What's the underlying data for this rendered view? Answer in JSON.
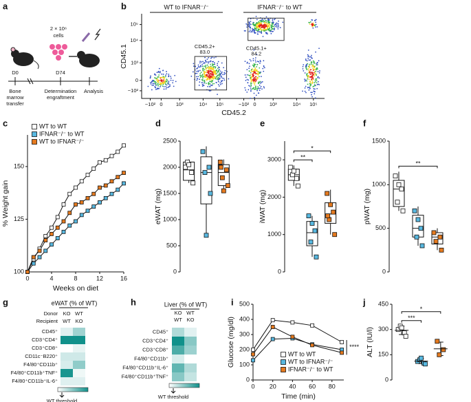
{
  "panel_labels": [
    "a",
    "b",
    "c",
    "d",
    "e",
    "f",
    "g",
    "h",
    "i",
    "j"
  ],
  "schematic": {
    "cell_dose": "2 × 10⁶",
    "cell_unit": "cells",
    "days": [
      "D0",
      "D74"
    ],
    "steps": [
      [
        "Bone",
        "marrow",
        "transfer"
      ],
      [
        "Determination",
        "engraftment"
      ],
      [
        "Analysis"
      ]
    ]
  },
  "flow": {
    "panels": [
      {
        "title": "WT to IFNAR⁻/⁻",
        "gate": [
          "CD45.2+",
          "83.0"
        ]
      },
      {
        "title": "IFNAR⁻/⁻ to WT",
        "gate": [
          "CD45.1+",
          "84.2"
        ]
      }
    ],
    "x_label": "CD45.2",
    "y_label": "CD45.1",
    "x_ticks": [
      "−10²",
      "0",
      "10³",
      "10⁴",
      "10⁵"
    ],
    "y_ticks": [
      "−10²",
      "0",
      "10³",
      "10⁴",
      "10⁵"
    ]
  },
  "chart_data": [
    {
      "type": "line",
      "y_label": "% Weight gain",
      "x_label": "Weeks on diet",
      "x": [
        0,
        1,
        2,
        3,
        4,
        5,
        6,
        7,
        8,
        9,
        10,
        11,
        12,
        13,
        14,
        15,
        16
      ],
      "xlim": [
        0,
        16
      ],
      "xticks": [
        0,
        4,
        8,
        12,
        16
      ],
      "ylim": [
        100,
        165
      ],
      "yticks": [
        100,
        125,
        150
      ],
      "legend": "upper left",
      "series": [
        {
          "name": "WT to WT",
          "color": "#ffffff",
          "values": [
            100,
            106,
            111,
            117,
            121,
            126,
            132,
            137,
            140,
            143,
            146,
            149,
            152,
            153,
            155,
            157,
            160
          ]
        },
        {
          "name": "IFNAR⁻/⁻ to WT",
          "color": "#58b8e0",
          "values": [
            100,
            104,
            107,
            110,
            113,
            116,
            119,
            122,
            124,
            127,
            129,
            131,
            133,
            135,
            137,
            139,
            142
          ]
        },
        {
          "name": "WT to IFNAR⁻/⁻",
          "color": "#e57a1f",
          "values": [
            100,
            107,
            110,
            115,
            118,
            121,
            124,
            128,
            132,
            133,
            135,
            137,
            140,
            141,
            143,
            145,
            147
          ]
        }
      ]
    },
    {
      "type": "box",
      "y_label": "eWAT (mg)",
      "ylim": [
        0,
        2500
      ],
      "yticks": [
        0,
        500,
        1000,
        1500,
        2000,
        2500
      ],
      "groups": [
        {
          "color": "#ffffff",
          "points": [
            2000,
            1900,
            2100,
            1700,
            2050
          ],
          "box": [
            1700,
            1750,
            1950,
            2100,
            2150
          ]
        },
        {
          "color": "#58b8e0",
          "points": [
            2300,
            2000,
            1900,
            1500,
            700
          ],
          "box": [
            700,
            1300,
            1900,
            2200,
            2400
          ]
        },
        {
          "color": "#e57a1f",
          "points": [
            2100,
            1950,
            1800,
            1650,
            1550,
            2000
          ],
          "box": [
            1550,
            1650,
            1900,
            2050,
            2150
          ]
        }
      ],
      "brackets": []
    },
    {
      "type": "box",
      "y_label": "iWAT (mg)",
      "ylim": [
        0,
        3500
      ],
      "yticks": [
        0,
        1000,
        2000,
        3000
      ],
      "groups": [
        {
          "color": "#ffffff",
          "points": [
            2800,
            2500,
            2600,
            2300,
            2700
          ],
          "box": [
            2300,
            2450,
            2600,
            2750,
            2850
          ]
        },
        {
          "color": "#58b8e0",
          "points": [
            1500,
            1100,
            800,
            400,
            1300
          ],
          "box": [
            400,
            700,
            1050,
            1350,
            1500
          ]
        },
        {
          "color": "#e57a1f",
          "points": [
            2100,
            1600,
            1400,
            1000,
            1800,
            1500
          ],
          "box": [
            1000,
            1300,
            1550,
            1850,
            2200
          ]
        }
      ],
      "brackets": [
        {
          "label": "**",
          "groups": [
            0,
            1
          ]
        },
        {
          "label": "*",
          "groups": [
            0,
            2
          ]
        }
      ]
    },
    {
      "type": "box",
      "y_label": "pWAT (mg)",
      "ylim": [
        0,
        1500
      ],
      "yticks": [
        0,
        500,
        1000,
        1500
      ],
      "groups": [
        {
          "color": "#ffffff",
          "points": [
            1100,
            950,
            800,
            700,
            1000
          ],
          "box": [
            700,
            750,
            950,
            1050,
            1150
          ]
        },
        {
          "color": "#58b8e0",
          "points": [
            700,
            500,
            400,
            300,
            600
          ],
          "box": [
            300,
            400,
            500,
            650,
            750
          ]
        },
        {
          "color": "#e57a1f",
          "points": [
            450,
            400,
            350,
            250
          ],
          "box": [
            250,
            320,
            400,
            450,
            500
          ]
        }
      ],
      "brackets": [
        {
          "label": "**",
          "groups": [
            0,
            2
          ]
        }
      ]
    },
    {
      "type": "heatmap",
      "title": "eWAT (% of WT)",
      "column_header_labels": [
        "Donor",
        "Recipient"
      ],
      "column_headers": [
        [
          "KO",
          "WT"
        ],
        [
          "WT",
          "KO"
        ]
      ],
      "rows": [
        "CD45⁺",
        "CD3⁺CD4⁺",
        "CD3⁺CD8⁺",
        "CD11c⁻B220⁺",
        "F4/80⁺CD11b⁺",
        "F4/80⁺CD11b⁺TNF⁺",
        "F4/80⁺CD11b⁺IL-6⁺"
      ],
      "values": [
        [
          120,
          160
        ],
        [
          250,
          250
        ],
        [
          100,
          115
        ],
        [
          130,
          130
        ],
        [
          125,
          170
        ],
        [
          245,
          110
        ],
        [
          120,
          120
        ]
      ],
      "low_color": "#ffffff",
      "high_color": "#11918b",
      "colorbar_label": "WT threshold"
    },
    {
      "type": "heatmap",
      "title": "Liver (% of WT)",
      "column_headers": [
        [
          "KO",
          "WT"
        ],
        [
          "WT",
          "KO"
        ]
      ],
      "rows": [
        "CD45⁺",
        "CD3⁺CD4⁺",
        "CD3⁺CD8⁺",
        "F4/80⁺CD11b⁺",
        "F4/80⁺CD11b⁺IL-6⁺",
        "F4/80⁺CD11b⁺TNF⁺"
      ],
      "values": [
        [
          150,
          125
        ],
        [
          230,
          170
        ],
        [
          200,
          160
        ],
        [
          130,
          110
        ],
        [
          190,
          150
        ],
        [
          170,
          140
        ]
      ],
      "low_color": "#ffffff",
      "high_color": "#11918b",
      "colorbar_label": "WT threshold"
    },
    {
      "type": "line",
      "y_label": "Glucose (mg/dl)",
      "x_label": "Time (min)",
      "x": [
        0,
        20,
        40,
        60,
        90
      ],
      "xlim": [
        0,
        92
      ],
      "xticks": [
        0,
        20,
        40,
        60,
        80
      ],
      "ylim": [
        0,
        500
      ],
      "yticks": [
        0,
        100,
        200,
        300,
        400,
        500
      ],
      "legend": "lower right",
      "annotation": "****",
      "series": [
        {
          "name": "WT to WT",
          "color": "#ffffff",
          "values": [
            200,
            395,
            380,
            360,
            250
          ]
        },
        {
          "name": "WT to IFNAR⁻/⁻",
          "color": "#58b8e0",
          "values": [
            130,
            270,
            275,
            235,
            200
          ]
        },
        {
          "name": "IFNAR⁻/⁻ to WT",
          "color": "#e57a1f",
          "values": [
            170,
            350,
            285,
            230,
            180
          ]
        }
      ]
    },
    {
      "type": "dot",
      "y_label": "ALT (IU/l)",
      "ylim": [
        0,
        450
      ],
      "yticks": [
        0,
        150,
        300,
        450
      ],
      "groups": [
        {
          "color": "#ffffff",
          "points": [
            300,
            280,
            320,
            260,
            310
          ],
          "mean": 295,
          "sd": 25
        },
        {
          "color": "#58b8e0",
          "points": [
            110,
            100,
            120,
            95,
            130
          ],
          "mean": 112,
          "sd": 15
        },
        {
          "color": "#e57a1f",
          "points": [
            230,
            180,
            150
          ],
          "mean": 185,
          "sd": 40
        }
      ],
      "brackets": [
        {
          "label": "***",
          "groups": [
            0,
            1
          ]
        },
        {
          "label": "*",
          "groups": [
            0,
            2
          ]
        }
      ]
    }
  ]
}
